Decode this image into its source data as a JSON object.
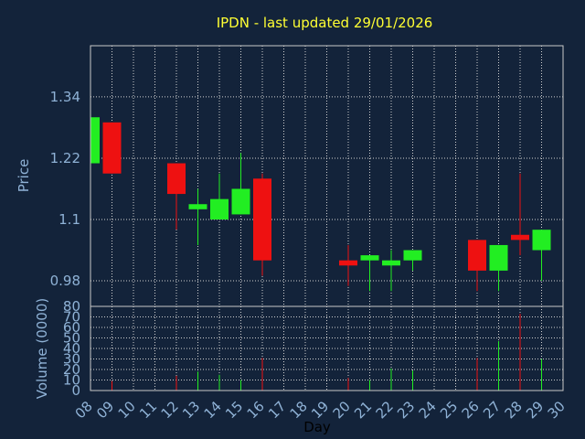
{
  "chart_data": [
    {
      "type": "candlestick",
      "title": "IPDN - last updated 29/01/2026",
      "ylabel": "Price",
      "ylim": [
        0.93,
        1.44
      ],
      "yticks": [
        "1.34",
        "1.22",
        "1.1",
        "0.98"
      ],
      "ytick_values": [
        1.34,
        1.22,
        1.1,
        0.98
      ],
      "grid": true,
      "colors": {
        "up": "#22ee22",
        "down": "#ee1111",
        "background": "#13233a"
      },
      "x": [
        "08",
        "09",
        "12",
        "13",
        "14",
        "15",
        "16",
        "20",
        "21",
        "22",
        "23",
        "26",
        "27",
        "28",
        "29"
      ],
      "open": [
        1.21,
        1.29,
        1.21,
        1.12,
        1.1,
        1.11,
        1.18,
        1.02,
        1.02,
        1.01,
        1.02,
        1.06,
        1.0,
        1.07,
        1.04
      ],
      "high": [
        1.36,
        1.29,
        1.21,
        1.16,
        1.19,
        1.23,
        1.19,
        1.05,
        1.03,
        1.04,
        1.04,
        1.06,
        1.05,
        1.19,
        1.08
      ],
      "low": [
        1.21,
        1.19,
        1.08,
        1.05,
        1.1,
        1.11,
        0.99,
        0.97,
        0.96,
        0.96,
        1.0,
        0.96,
        0.96,
        1.03,
        0.98
      ],
      "close": [
        1.3,
        1.19,
        1.15,
        1.13,
        1.14,
        1.16,
        1.02,
        1.01,
        1.03,
        1.02,
        1.04,
        1.0,
        1.05,
        1.06,
        1.08
      ]
    },
    {
      "type": "bar",
      "ylabel": "Volume (0000)",
      "ylim": [
        0,
        80
      ],
      "yticks": [
        "80",
        "70",
        "60",
        "50",
        "40",
        "30",
        "20",
        "10",
        "0"
      ],
      "ytick_values": [
        80,
        70,
        60,
        50,
        40,
        30,
        20,
        10,
        0
      ],
      "xlabel": "Day",
      "xticks": [
        "08",
        "09",
        "10",
        "11",
        "12",
        "13",
        "14",
        "15",
        "16",
        "17",
        "18",
        "19",
        "20",
        "21",
        "22",
        "23",
        "24",
        "25",
        "26",
        "27",
        "28",
        "29",
        "30"
      ],
      "x": [
        "08",
        "09",
        "12",
        "13",
        "14",
        "15",
        "16",
        "20",
        "21",
        "22",
        "23",
        "26",
        "27",
        "28",
        "29"
      ],
      "values": [
        8,
        9,
        14,
        18,
        15,
        10,
        31,
        12,
        10,
        21,
        19,
        31,
        47,
        73,
        30
      ]
    }
  ]
}
